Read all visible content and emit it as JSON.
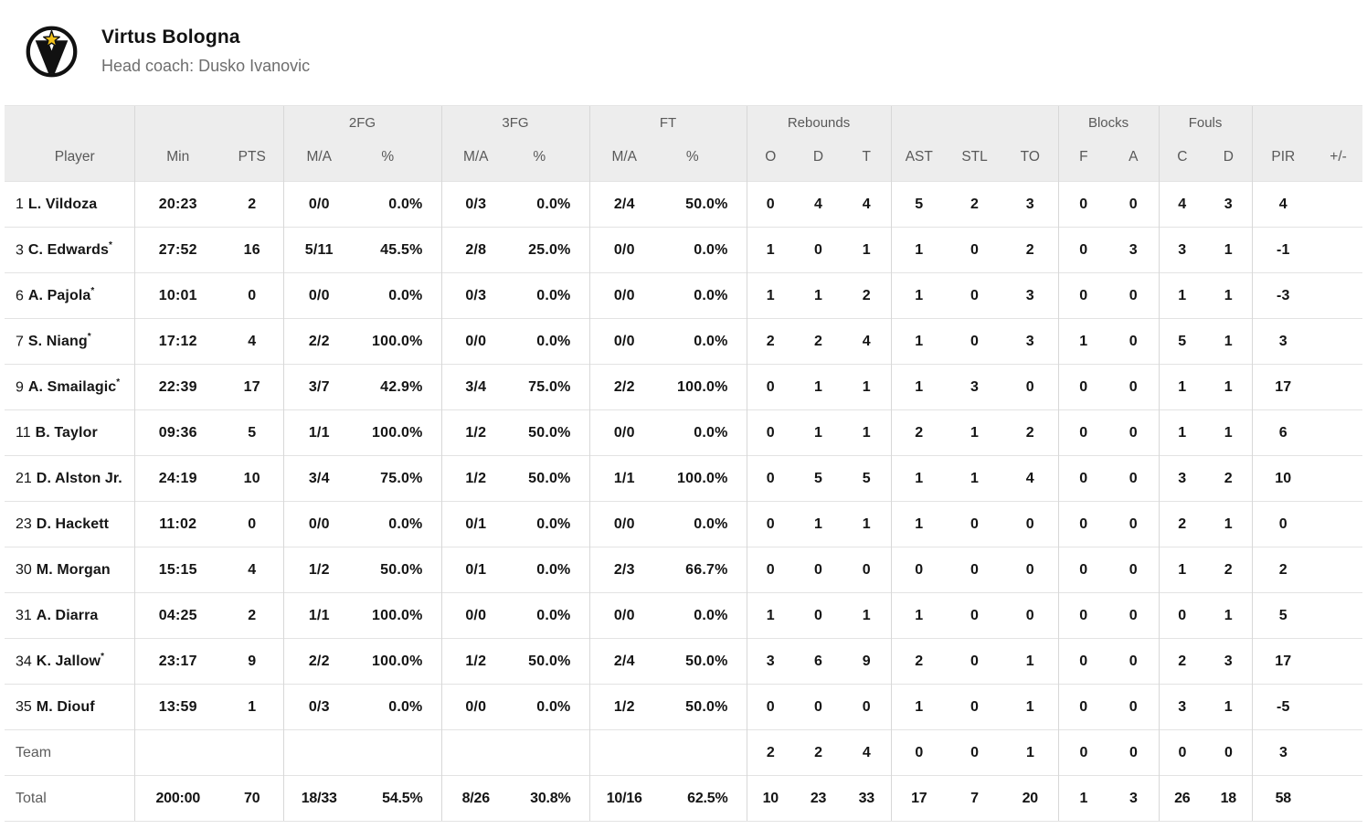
{
  "team": {
    "name": "Virtus Bologna",
    "coach": "Head coach: Dusko Ivanovic",
    "logo": "virtus-bologna-circle-v-star"
  },
  "colors": {
    "header_bg": "#ededed",
    "text_dark": "#161616",
    "text_gray": "#595959",
    "line": "#e3e3e3",
    "divider": "#d8d8d8",
    "star_gold": "#f2c21a"
  },
  "table": {
    "group_labels": [
      "2FG",
      "3FG",
      "FT",
      "Rebounds",
      "Blocks",
      "Fouls"
    ],
    "columns": [
      "Player",
      "Min",
      "PTS",
      "M/A",
      "%",
      "M/A",
      "%",
      "M/A",
      "%",
      "O",
      "D",
      "T",
      "AST",
      "STL",
      "TO",
      "F",
      "A",
      "C",
      "D",
      "PIR",
      "+/-"
    ],
    "rows": [
      {
        "num": "1",
        "name": "L. Vildoza",
        "starter": false,
        "cells": [
          "20:23",
          "2",
          "0/0",
          "0.0%",
          "0/3",
          "0.0%",
          "2/4",
          "50.0%",
          "0",
          "4",
          "4",
          "5",
          "2",
          "3",
          "0",
          "0",
          "4",
          "3",
          "4",
          ""
        ]
      },
      {
        "num": "3",
        "name": "C. Edwards",
        "starter": true,
        "cells": [
          "27:52",
          "16",
          "5/11",
          "45.5%",
          "2/8",
          "25.0%",
          "0/0",
          "0.0%",
          "1",
          "0",
          "1",
          "1",
          "0",
          "2",
          "0",
          "3",
          "3",
          "1",
          "-1",
          ""
        ]
      },
      {
        "num": "6",
        "name": "A. Pajola",
        "starter": true,
        "cells": [
          "10:01",
          "0",
          "0/0",
          "0.0%",
          "0/3",
          "0.0%",
          "0/0",
          "0.0%",
          "1",
          "1",
          "2",
          "1",
          "0",
          "3",
          "0",
          "0",
          "1",
          "1",
          "-3",
          ""
        ]
      },
      {
        "num": "7",
        "name": "S. Niang",
        "starter": true,
        "cells": [
          "17:12",
          "4",
          "2/2",
          "100.0%",
          "0/0",
          "0.0%",
          "0/0",
          "0.0%",
          "2",
          "2",
          "4",
          "1",
          "0",
          "3",
          "1",
          "0",
          "5",
          "1",
          "3",
          ""
        ]
      },
      {
        "num": "9",
        "name": "A. Smailagic",
        "starter": true,
        "cells": [
          "22:39",
          "17",
          "3/7",
          "42.9%",
          "3/4",
          "75.0%",
          "2/2",
          "100.0%",
          "0",
          "1",
          "1",
          "1",
          "3",
          "0",
          "0",
          "0",
          "1",
          "1",
          "17",
          ""
        ]
      },
      {
        "num": "11",
        "name": "B. Taylor",
        "starter": false,
        "cells": [
          "09:36",
          "5",
          "1/1",
          "100.0%",
          "1/2",
          "50.0%",
          "0/0",
          "0.0%",
          "0",
          "1",
          "1",
          "2",
          "1",
          "2",
          "0",
          "0",
          "1",
          "1",
          "6",
          ""
        ]
      },
      {
        "num": "21",
        "name": "D. Alston Jr.",
        "starter": false,
        "cells": [
          "24:19",
          "10",
          "3/4",
          "75.0%",
          "1/2",
          "50.0%",
          "1/1",
          "100.0%",
          "0",
          "5",
          "5",
          "1",
          "1",
          "4",
          "0",
          "0",
          "3",
          "2",
          "10",
          ""
        ]
      },
      {
        "num": "23",
        "name": "D. Hackett",
        "starter": false,
        "cells": [
          "11:02",
          "0",
          "0/0",
          "0.0%",
          "0/1",
          "0.0%",
          "0/0",
          "0.0%",
          "0",
          "1",
          "1",
          "1",
          "0",
          "0",
          "0",
          "0",
          "2",
          "1",
          "0",
          ""
        ]
      },
      {
        "num": "30",
        "name": "M. Morgan",
        "starter": false,
        "cells": [
          "15:15",
          "4",
          "1/2",
          "50.0%",
          "0/1",
          "0.0%",
          "2/3",
          "66.7%",
          "0",
          "0",
          "0",
          "0",
          "0",
          "0",
          "0",
          "0",
          "1",
          "2",
          "2",
          ""
        ]
      },
      {
        "num": "31",
        "name": "A. Diarra",
        "starter": false,
        "cells": [
          "04:25",
          "2",
          "1/1",
          "100.0%",
          "0/0",
          "0.0%",
          "0/0",
          "0.0%",
          "1",
          "0",
          "1",
          "1",
          "0",
          "0",
          "0",
          "0",
          "0",
          "1",
          "5",
          ""
        ]
      },
      {
        "num": "34",
        "name": "K. Jallow",
        "starter": true,
        "cells": [
          "23:17",
          "9",
          "2/2",
          "100.0%",
          "1/2",
          "50.0%",
          "2/4",
          "50.0%",
          "3",
          "6",
          "9",
          "2",
          "0",
          "1",
          "0",
          "0",
          "2",
          "3",
          "17",
          ""
        ]
      },
      {
        "num": "35",
        "name": "M. Diouf",
        "starter": false,
        "cells": [
          "13:59",
          "1",
          "0/3",
          "0.0%",
          "0/0",
          "0.0%",
          "1/2",
          "50.0%",
          "0",
          "0",
          "0",
          "1",
          "0",
          "1",
          "0",
          "0",
          "3",
          "1",
          "-5",
          ""
        ]
      }
    ],
    "summary_rows": [
      {
        "label": "Team",
        "cells": [
          "",
          "",
          "",
          "",
          "",
          "",
          "",
          "",
          "2",
          "2",
          "4",
          "0",
          "0",
          "1",
          "0",
          "0",
          "0",
          "0",
          "3",
          ""
        ]
      },
      {
        "label": "Total",
        "cells": [
          "200:00",
          "70",
          "18/33",
          "54.5%",
          "8/26",
          "30.8%",
          "10/16",
          "62.5%",
          "10",
          "23",
          "33",
          "17",
          "7",
          "20",
          "1",
          "3",
          "26",
          "18",
          "58",
          ""
        ]
      }
    ]
  }
}
